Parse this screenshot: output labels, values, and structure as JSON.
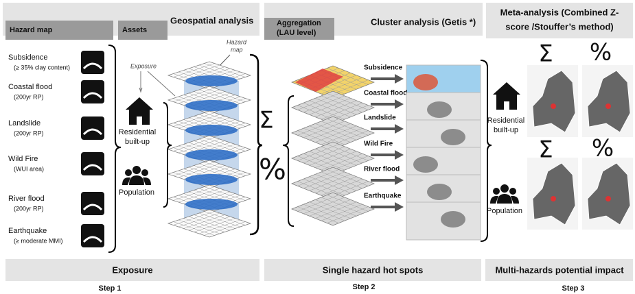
{
  "header": {
    "hazard_map": "Hazard map",
    "assets": "Assets",
    "geospatial_analysis": "Geospatial analysis",
    "aggregation": [
      "Aggregation",
      "(LAU level)"
    ],
    "cluster_analysis": "Cluster analysis (Getis *)",
    "meta_analysis": [
      "Meta-analysis (Combined Z-",
      "score /Stouffer’s method)"
    ]
  },
  "hazards": [
    {
      "name": "Subsidence",
      "detail": "(≥ 35% clay content)"
    },
    {
      "name": "Coastal flood",
      "detail": "(200yr RP)"
    },
    {
      "name": "Landslide",
      "detail": "(200yr RP)"
    },
    {
      "name": "Wild Fire",
      "detail": "(WUI area)"
    },
    {
      "name": "River flood",
      "detail": "(200yr RP)"
    },
    {
      "name": "Earthquake",
      "detail": "(≥ moderate MMI)"
    }
  ],
  "assets": {
    "residential": [
      "Residential",
      "built-up"
    ],
    "population": "Population"
  },
  "annotations": {
    "exposure": "Exposure",
    "hazard_map": [
      "Hazard",
      "map"
    ]
  },
  "operators": {
    "sum": "Σ",
    "percent": "%"
  },
  "cluster_labels": [
    "Subsidence",
    "Coastal flood",
    "Landslide",
    "Wild Fire",
    "River flood",
    "Earthquake"
  ],
  "meta_assets": {
    "residential": [
      "Residential",
      "built-up"
    ],
    "population": "Population"
  },
  "footer": {
    "panels": [
      "Exposure",
      "Single hazard hot spots",
      "Multi-hazards potential impact"
    ],
    "steps": [
      "Step 1",
      "Step 2",
      "Step 3"
    ]
  }
}
